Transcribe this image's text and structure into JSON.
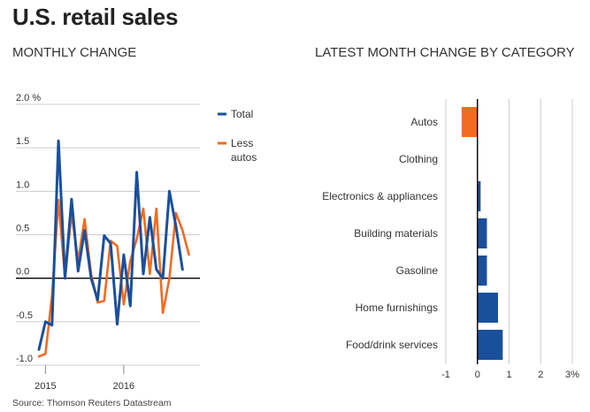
{
  "title": "U.S. retail sales",
  "source": "Source: Thomson Reuters Datastream",
  "colors": {
    "total": "#1a4f9c",
    "less_autos": "#f26b21",
    "grid": "#cccccc",
    "axis": "#000000"
  },
  "chart_data": [
    {
      "type": "line",
      "title": "MONTHLY CHANGE",
      "ylim": [
        -1.0,
        2.0
      ],
      "y_ticks": [
        "2.0 %",
        "1.5",
        "1.0",
        "0.5",
        "0.0",
        "-0.5",
        "-1.0"
      ],
      "x_ticks": [
        "2015",
        "2016"
      ],
      "legend_position": "right",
      "x": [
        "2014-12",
        "2015-01",
        "2015-02",
        "2015-03",
        "2015-04",
        "2015-05",
        "2015-06",
        "2015-07",
        "2015-08",
        "2015-09",
        "2015-10",
        "2015-11",
        "2015-12",
        "2016-01",
        "2016-02",
        "2016-03",
        "2016-04",
        "2016-05",
        "2016-06",
        "2016-07",
        "2016-08",
        "2016-09",
        "2016-10",
        "2016-11",
        "2016-12"
      ],
      "series": [
        {
          "name": "Total",
          "color": "#1a4f9c",
          "values": [
            -0.82,
            -0.5,
            -0.54,
            1.58,
            0.0,
            0.91,
            0.08,
            0.55,
            0.0,
            -0.25,
            0.49,
            0.4,
            -0.53,
            0.27,
            -0.32,
            1.22,
            0.05,
            0.7,
            0.1,
            0.0,
            1.0,
            0.6,
            0.1,
            null,
            null
          ]
        },
        {
          "name": "Less autos",
          "color": "#f26b21",
          "values": [
            -0.9,
            -0.87,
            -0.2,
            0.9,
            0.0,
            0.75,
            0.2,
            0.68,
            0.05,
            -0.28,
            -0.26,
            0.43,
            0.37,
            -0.3,
            0.2,
            0.45,
            0.8,
            0.05,
            0.8,
            -0.4,
            0.0,
            0.75,
            0.55,
            0.27,
            null
          ]
        }
      ]
    },
    {
      "type": "bar",
      "orientation": "horizontal",
      "title": "LATEST MONTH CHANGE BY CATEGORY",
      "categories": [
        "Autos",
        "Clothing",
        "Electronics & appliances",
        "Building materials",
        "Gasoline",
        "Home furnishings",
        "Food/drink services"
      ],
      "values": [
        -0.5,
        0.0,
        0.1,
        0.3,
        0.3,
        0.65,
        0.8
      ],
      "colors": [
        "#f26b21",
        "#1a4f9c",
        "#1a4f9c",
        "#1a4f9c",
        "#1a4f9c",
        "#1a4f9c",
        "#1a4f9c"
      ],
      "xlim": [
        -1,
        3
      ],
      "x_ticks": [
        "-1",
        "0",
        "1",
        "2",
        "3%"
      ]
    }
  ]
}
